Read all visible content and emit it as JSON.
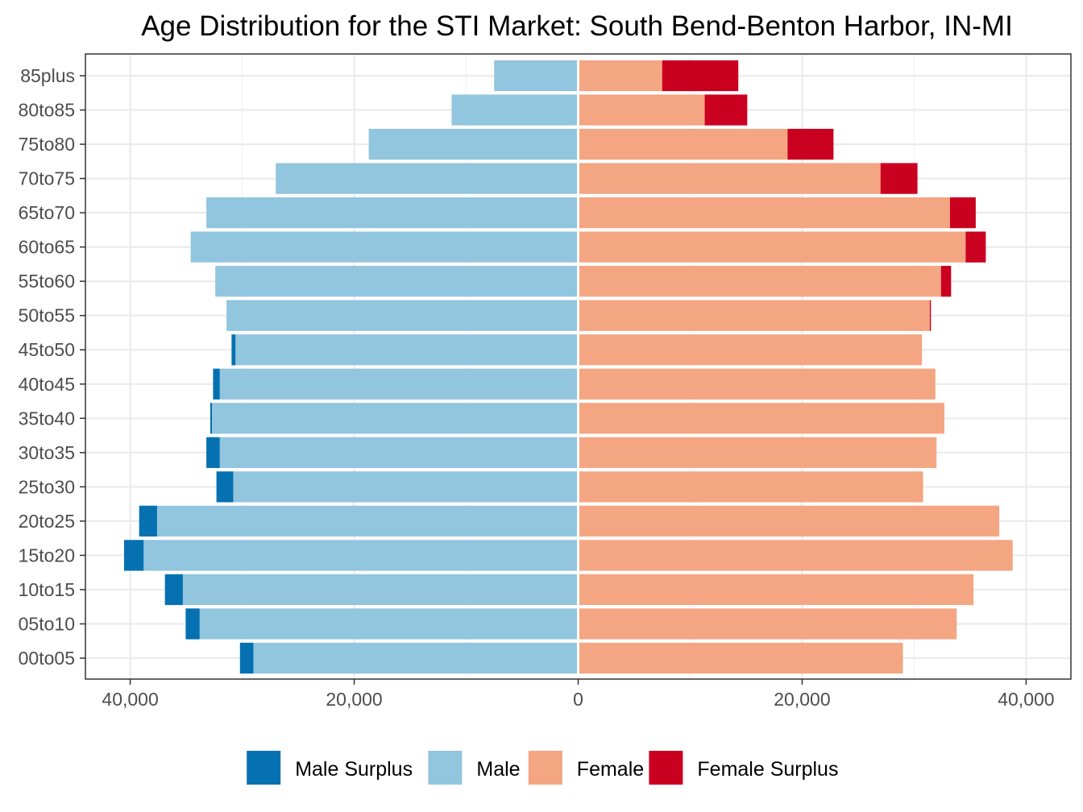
{
  "chart_data": {
    "type": "bar",
    "orientation": "horizontal",
    "layout": "population-pyramid",
    "title": "Age Distribution for the STI Market: South Bend-Benton Harbor, IN-MI",
    "xlabel": "",
    "ylabel": "",
    "xlim": [
      -44000,
      44000
    ],
    "x_ticks": [
      -40000,
      -20000,
      0,
      20000,
      40000
    ],
    "x_tick_labels": [
      "40,000",
      "20,000",
      "0",
      "20,000",
      "40,000"
    ],
    "grid": true,
    "legend_position": "bottom",
    "categories": [
      "00to05",
      "05to10",
      "10to15",
      "15to20",
      "20to25",
      "25to30",
      "30to35",
      "35to40",
      "40to45",
      "45to50",
      "50to55",
      "55to60",
      "60to65",
      "65to70",
      "70to75",
      "75to80",
      "80to85",
      "85plus"
    ],
    "series": [
      {
        "name": "Male Surplus",
        "side": "left",
        "stack": "male",
        "color": "#0571b0",
        "values": [
          1200,
          1250,
          1600,
          1750,
          1600,
          1500,
          1200,
          150,
          600,
          350,
          0,
          0,
          0,
          0,
          0,
          0,
          0,
          0
        ]
      },
      {
        "name": "Male",
        "side": "left",
        "stack": "male",
        "color": "#92c5de",
        "values": [
          29000,
          33800,
          35300,
          38800,
          37600,
          30800,
          32000,
          32700,
          32000,
          30600,
          31400,
          32400,
          34600,
          33200,
          27000,
          18700,
          11300,
          7500
        ]
      },
      {
        "name": "Female",
        "side": "right",
        "stack": "female",
        "color": "#f4a582",
        "values": [
          29000,
          33800,
          35300,
          38800,
          37600,
          30800,
          32000,
          32700,
          31900,
          30700,
          31400,
          32400,
          34600,
          33200,
          27000,
          18700,
          11300,
          7500
        ]
      },
      {
        "name": "Female Surplus",
        "side": "right",
        "stack": "female",
        "color": "#ca0020",
        "values": [
          0,
          0,
          0,
          0,
          0,
          0,
          0,
          0,
          0,
          0,
          100,
          900,
          1800,
          2300,
          3300,
          4100,
          3800,
          6800
        ]
      }
    ]
  }
}
